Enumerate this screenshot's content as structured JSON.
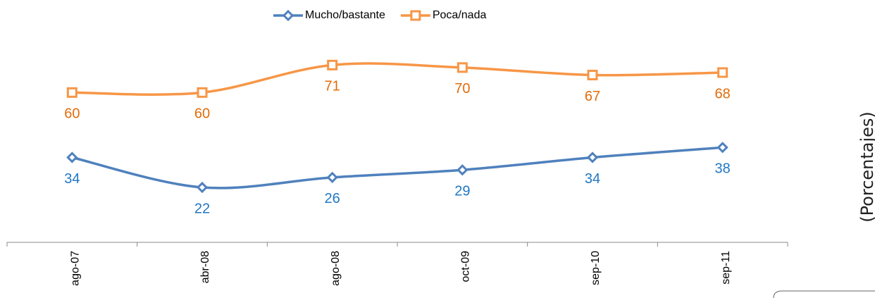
{
  "chart_data": {
    "type": "line",
    "y_label": "(Porcentajes)",
    "categories": [
      "ago-07",
      "abr-08",
      "ago-08",
      "oct-09",
      "sep-10",
      "sep-11"
    ],
    "series": [
      {
        "name": "Mucho/bastante",
        "color": "#4f81bd",
        "label_color": "#1f77c4",
        "marker": "diamond",
        "values": [
          34,
          22,
          26,
          29,
          34,
          38
        ]
      },
      {
        "name": "Poca/nada",
        "color": "#f79646",
        "label_color": "#e36c0a",
        "marker": "square",
        "values": [
          60,
          60,
          71,
          70,
          67,
          68
        ]
      }
    ],
    "ylim": [
      0,
      90
    ],
    "smooth": true,
    "legend": "top"
  }
}
